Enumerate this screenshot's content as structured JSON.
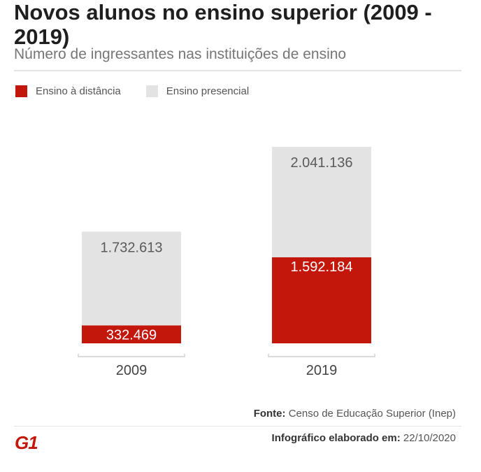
{
  "header": {
    "title": "Novos alunos no ensino superior (2009 - 2019)",
    "subtitle": "Número de ingressantes nas instituições de ensino"
  },
  "legend": [
    {
      "label": "Ensino à distância",
      "color": "#c4170c"
    },
    {
      "label": "Ensino presencial",
      "color": "#e3e3e3"
    }
  ],
  "chart_data": {
    "type": "bar",
    "stacked": true,
    "categories": [
      "2009",
      "2019"
    ],
    "series": [
      {
        "name": "Ensino à distância",
        "color": "#c4170c",
        "values": [
          332469,
          1592184
        ],
        "labels": [
          "332.469",
          "1.592.184"
        ]
      },
      {
        "name": "Ensino presencial",
        "color": "#e3e3e3",
        "values": [
          1732613,
          2041136
        ],
        "labels": [
          "1.732.613",
          "2.041.136"
        ]
      }
    ],
    "title": "Novos alunos no ensino superior (2009 - 2019)",
    "xlabel": "",
    "ylabel": "",
    "grid": false,
    "legend_position": "top-left"
  },
  "footer": {
    "source_label": "Fonte:",
    "source_text": "Censo de Educação Superior (Inep)",
    "credit_label": "Infográfico elaborado em:",
    "credit_date": "22/10/2020",
    "logo": "G1"
  }
}
